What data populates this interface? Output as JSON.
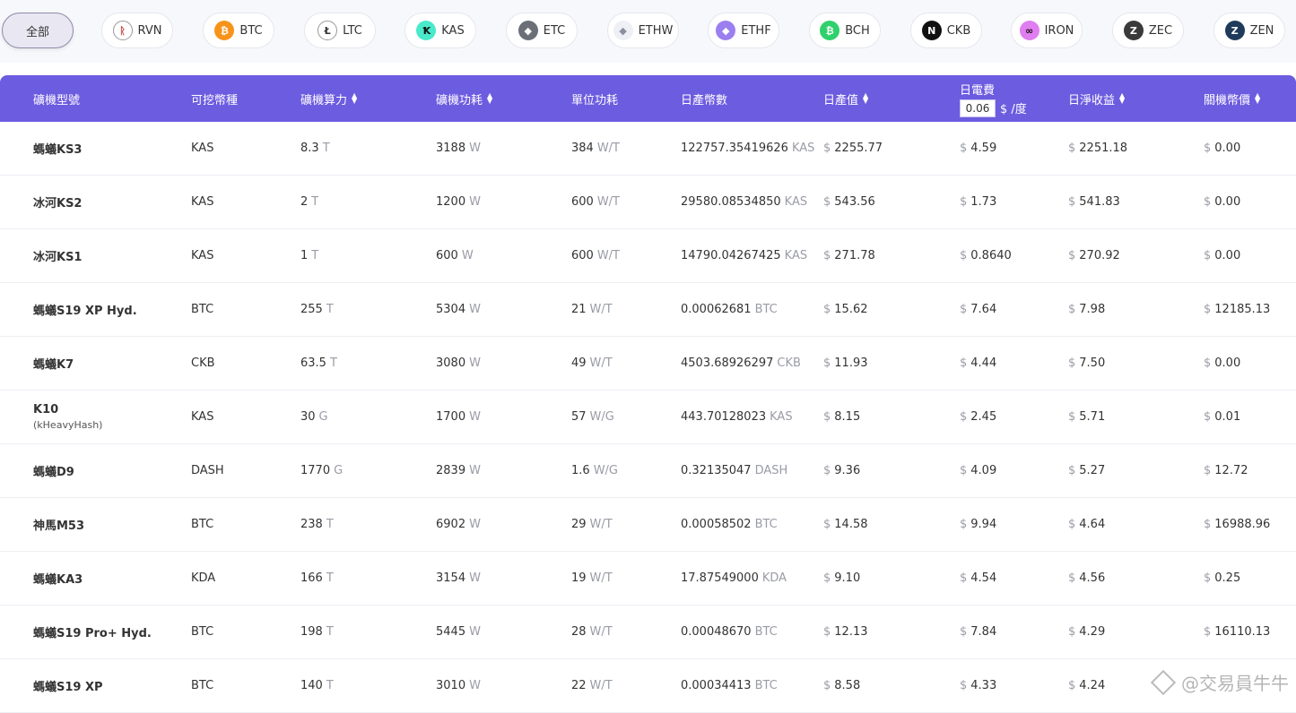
{
  "coins": [
    {
      "label": "全部",
      "icon": "",
      "color": "",
      "active": true
    },
    {
      "label": "RVN",
      "icon": "raven-icon",
      "glyph": "ᚱ",
      "color": "#ffffff",
      "fg": "#c33b3b",
      "active": false
    },
    {
      "label": "BTC",
      "icon": "bitcoin-icon",
      "glyph": "₿",
      "color": "#f7931a",
      "fg": "#ffffff",
      "active": false
    },
    {
      "label": "LTC",
      "icon": "litecoin-icon",
      "glyph": "Ł",
      "color": "#ffffff",
      "fg": "#333333",
      "active": false
    },
    {
      "label": "KAS",
      "icon": "kaspa-icon",
      "glyph": "Ꝁ",
      "color": "#49eacb",
      "fg": "#111111",
      "active": false
    },
    {
      "label": "ETC",
      "icon": "ethereum-classic-icon",
      "glyph": "◆",
      "color": "#6b6f78",
      "fg": "#ffffff",
      "active": false
    },
    {
      "label": "ETHW",
      "icon": "ethereum-pow-icon",
      "glyph": "◆",
      "color": "#eef0f6",
      "fg": "#8a8fa0",
      "active": false
    },
    {
      "label": "ETHF",
      "icon": "ethereum-fair-icon",
      "glyph": "◆",
      "color": "#9b7ff0",
      "fg": "#ffffff",
      "active": false
    },
    {
      "label": "BCH",
      "icon": "bitcoin-cash-icon",
      "glyph": "₿",
      "color": "#2ed16b",
      "fg": "#ffffff",
      "active": false
    },
    {
      "label": "CKB",
      "icon": "nervos-icon",
      "glyph": "N",
      "color": "#111111",
      "fg": "#ffffff",
      "active": false
    },
    {
      "label": "IRON",
      "icon": "ironfish-icon",
      "glyph": "∞",
      "color": "#e07df0",
      "fg": "#111111",
      "active": false
    },
    {
      "label": "ZEC",
      "icon": "zcash-icon",
      "glyph": "Z",
      "color": "#3a3a3a",
      "fg": "#ffffff",
      "active": false
    },
    {
      "label": "ZEN",
      "icon": "horizen-icon",
      "glyph": "Z",
      "color": "#1f3a5a",
      "fg": "#ffffff",
      "active": false
    }
  ],
  "header": {
    "model": "礦機型號",
    "coin": "可挖幣種",
    "hashrate": "礦機算力",
    "power": "礦機功耗",
    "efficiency": "單位功耗",
    "daily_coins": "日產幣數",
    "daily_value": "日產值",
    "elec_title": "日電費",
    "elec_value": "0.06",
    "elec_unit": "$ /度",
    "net_profit": "日淨收益",
    "shutdown_price": "關機幣價"
  },
  "rows": [
    {
      "model": "螞蟻KS3",
      "algo": "",
      "coin": "KAS",
      "hash": "8.3",
      "hash_u": "T",
      "power": "3188",
      "power_u": "W",
      "eff": "384",
      "eff_u": "W/T",
      "coins": "122757.35419626",
      "coins_u": "KAS",
      "value": "2255.77",
      "elec": "4.59",
      "net": "2251.18",
      "price": "0.00"
    },
    {
      "model": "冰河KS2",
      "algo": "",
      "coin": "KAS",
      "hash": "2",
      "hash_u": "T",
      "power": "1200",
      "power_u": "W",
      "eff": "600",
      "eff_u": "W/T",
      "coins": "29580.08534850",
      "coins_u": "KAS",
      "value": "543.56",
      "elec": "1.73",
      "net": "541.83",
      "price": "0.00"
    },
    {
      "model": "冰河KS1",
      "algo": "",
      "coin": "KAS",
      "hash": "1",
      "hash_u": "T",
      "power": "600",
      "power_u": "W",
      "eff": "600",
      "eff_u": "W/T",
      "coins": "14790.04267425",
      "coins_u": "KAS",
      "value": "271.78",
      "elec": "0.8640",
      "net": "270.92",
      "price": "0.00"
    },
    {
      "model": "螞蟻S19 XP Hyd.",
      "algo": "",
      "coin": "BTC",
      "hash": "255",
      "hash_u": "T",
      "power": "5304",
      "power_u": "W",
      "eff": "21",
      "eff_u": "W/T",
      "coins": "0.00062681",
      "coins_u": "BTC",
      "value": "15.62",
      "elec": "7.64",
      "net": "7.98",
      "price": "12185.13"
    },
    {
      "model": "螞蟻K7",
      "algo": "",
      "coin": "CKB",
      "hash": "63.5",
      "hash_u": "T",
      "power": "3080",
      "power_u": "W",
      "eff": "49",
      "eff_u": "W/T",
      "coins": "4503.68926297",
      "coins_u": "CKB",
      "value": "11.93",
      "elec": "4.44",
      "net": "7.50",
      "price": "0.00"
    },
    {
      "model": "K10",
      "algo": "(kHeavyHash)",
      "coin": "KAS",
      "hash": "30",
      "hash_u": "G",
      "power": "1700",
      "power_u": "W",
      "eff": "57",
      "eff_u": "W/G",
      "coins": "443.70128023",
      "coins_u": "KAS",
      "value": "8.15",
      "elec": "2.45",
      "net": "5.71",
      "price": "0.01"
    },
    {
      "model": "螞蟻D9",
      "algo": "",
      "coin": "DASH",
      "hash": "1770",
      "hash_u": "G",
      "power": "2839",
      "power_u": "W",
      "eff": "1.6",
      "eff_u": "W/G",
      "coins": "0.32135047",
      "coins_u": "DASH",
      "value": "9.36",
      "elec": "4.09",
      "net": "5.27",
      "price": "12.72"
    },
    {
      "model": "神馬M53",
      "algo": "",
      "coin": "BTC",
      "hash": "238",
      "hash_u": "T",
      "power": "6902",
      "power_u": "W",
      "eff": "29",
      "eff_u": "W/T",
      "coins": "0.00058502",
      "coins_u": "BTC",
      "value": "14.58",
      "elec": "9.94",
      "net": "4.64",
      "price": "16988.96"
    },
    {
      "model": "螞蟻KA3",
      "algo": "",
      "coin": "KDA",
      "hash": "166",
      "hash_u": "T",
      "power": "3154",
      "power_u": "W",
      "eff": "19",
      "eff_u": "W/T",
      "coins": "17.87549000",
      "coins_u": "KDA",
      "value": "9.10",
      "elec": "4.54",
      "net": "4.56",
      "price": "0.25"
    },
    {
      "model": "螞蟻S19 Pro+ Hyd.",
      "algo": "",
      "coin": "BTC",
      "hash": "198",
      "hash_u": "T",
      "power": "5445",
      "power_u": "W",
      "eff": "28",
      "eff_u": "W/T",
      "coins": "0.00048670",
      "coins_u": "BTC",
      "value": "12.13",
      "elec": "7.84",
      "net": "4.29",
      "price": "16110.13"
    },
    {
      "model": "螞蟻S19 XP",
      "algo": "",
      "coin": "BTC",
      "hash": "140",
      "hash_u": "T",
      "power": "3010",
      "power_u": "W",
      "eff": "22",
      "eff_u": "W/T",
      "coins": "0.00034413",
      "coins_u": "BTC",
      "value": "8.58",
      "elec": "4.33",
      "net": "4.24",
      "price": ""
    }
  ],
  "currency": "$",
  "watermark": "@交易員牛牛",
  "colors": {
    "header_bg": "#6c5ce0",
    "unit_gray": "#9a9ca6"
  }
}
